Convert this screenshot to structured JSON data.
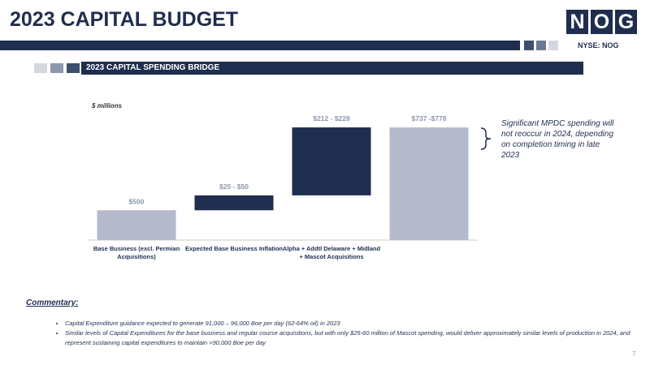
{
  "header": {
    "title": "2023 CAPITAL BUDGET",
    "logo": [
      "N",
      "O",
      "G"
    ],
    "ticker": "NYSE: NOG"
  },
  "section_title": "2023 CAPITAL SPENDING BRIDGE",
  "chart_data": {
    "type": "waterfall",
    "unit_label": "$ millions",
    "categories": [
      "Base Business (excl. Permian Acquisitions)",
      "Expected Base Business Inflation",
      "Alpha + Addtl Delaware + Midland + Mascot Acquisitions",
      null
    ],
    "values": [
      500,
      50,
      228,
      778
    ],
    "value_labels": [
      "$500",
      "$25 - $50",
      "$212 - $228",
      "$737 -$778"
    ],
    "measure": [
      "absolute",
      "relative",
      "relative",
      "total"
    ],
    "colors": [
      "#b4bacb",
      "#1f2d4e",
      "#1f2d4e",
      "#b4bacb"
    ],
    "ylim": [
      400,
      800
    ],
    "annotation": "Significant MPDC spending will not reoccur in 2024, depending on completion timing in late 2023"
  },
  "commentary": {
    "title": "Commentary:",
    "bullets": [
      "Capital Expenditure guidance expected to generate 91,000 – 96,000 Boe per day (62-64% oil) in 2023",
      "Similar levels of Capital Expenditures for the base business and regular course acquisitions, but with only $25-60 million of Mascot spending, would deliver approximately similar levels of production in 2024, and represent sustaining capital expenditures to maintain >90,000 Boe per day"
    ]
  },
  "page_number": 7
}
